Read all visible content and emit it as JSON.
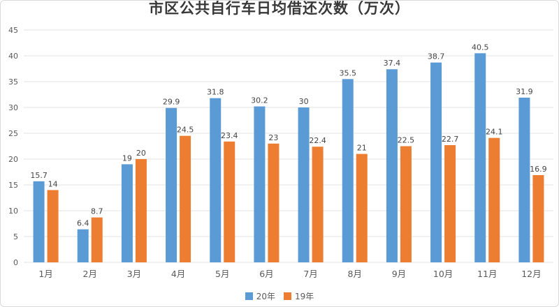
{
  "chart_data": {
    "type": "bar",
    "title": "市区公共自行车日均借还次数（万次）",
    "categories": [
      "1月",
      "2月",
      "3月",
      "4月",
      "5月",
      "6月",
      "7月",
      "8月",
      "9月",
      "10月",
      "11月",
      "12月"
    ],
    "series": [
      {
        "name": "20年",
        "color": "#5B9BD5",
        "values": [
          15.7,
          6.4,
          19,
          29.9,
          31.8,
          30.2,
          30,
          35.5,
          37.4,
          38.7,
          40.5,
          31.9
        ]
      },
      {
        "name": "19年",
        "color": "#ED7D31",
        "values": [
          14,
          8.7,
          20,
          24.5,
          23.4,
          23,
          22.4,
          21,
          22.5,
          22.7,
          24.1,
          16.9
        ]
      }
    ],
    "xlabel": "",
    "ylabel": "",
    "ylim": [
      0,
      45
    ],
    "ytick_step": 5,
    "grid": true,
    "data_labels": true,
    "legend_position": "bottom"
  },
  "colors": {
    "grid_line": "#e3e3e3",
    "axis_text": "#595959",
    "data_label_text": "#444444",
    "title_text": "#383838",
    "background": "#ffffff",
    "border": "#d9d9d9"
  }
}
